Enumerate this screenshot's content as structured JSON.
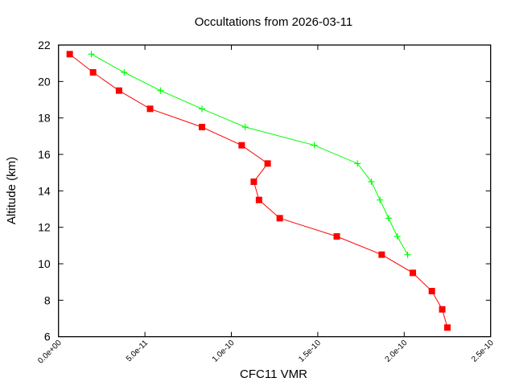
{
  "chart_data": {
    "type": "line",
    "title": "Occultations from 2026-03-11",
    "xlabel": "CFC11 VMR",
    "ylabel": "Altitude (km)",
    "xlim": [
      0,
      2.5e-10
    ],
    "ylim": [
      6,
      22
    ],
    "x_ticks": [
      0,
      5e-11,
      1e-10,
      1.5e-10,
      2e-10,
      2.5e-10
    ],
    "x_tick_labels": [
      "0.0e+00",
      "5.0e-11",
      "1.0e-10",
      "1.5e-10",
      "2.0e-10",
      "2.5e-10"
    ],
    "y_ticks": [
      6,
      8,
      10,
      12,
      14,
      16,
      18,
      20,
      22
    ],
    "y_tick_labels": [
      "6",
      "8",
      "10",
      "12",
      "14",
      "16",
      "18",
      "20",
      "22"
    ],
    "grid": false,
    "series": [
      {
        "color": "#ff0000",
        "marker": "square",
        "x": [
          6.5e-12,
          2e-11,
          3.5e-11,
          5.3e-11,
          8.3e-11,
          1.06e-10,
          1.21e-10,
          1.13e-10,
          1.16e-10,
          1.28e-10,
          1.61e-10,
          1.87e-10,
          2.05e-10,
          2.16e-10,
          2.22e-10,
          2.25e-10
        ],
        "y": [
          21.5,
          20.5,
          19.5,
          18.5,
          17.5,
          16.5,
          15.5,
          14.5,
          13.5,
          12.5,
          11.5,
          10.5,
          9.5,
          8.5,
          7.5,
          6.5
        ]
      },
      {
        "color": "#00ff00",
        "marker": "plus",
        "x": [
          1.9e-11,
          3.8e-11,
          5.9e-11,
          8.3e-11,
          1.08e-10,
          1.48e-10,
          1.73e-10,
          1.81e-10,
          1.86e-10,
          1.91e-10,
          1.96e-10,
          2.02e-10
        ],
        "y": [
          21.5,
          20.5,
          19.5,
          18.5,
          17.5,
          16.5,
          15.5,
          14.5,
          13.5,
          12.5,
          11.5,
          10.5
        ]
      }
    ]
  }
}
